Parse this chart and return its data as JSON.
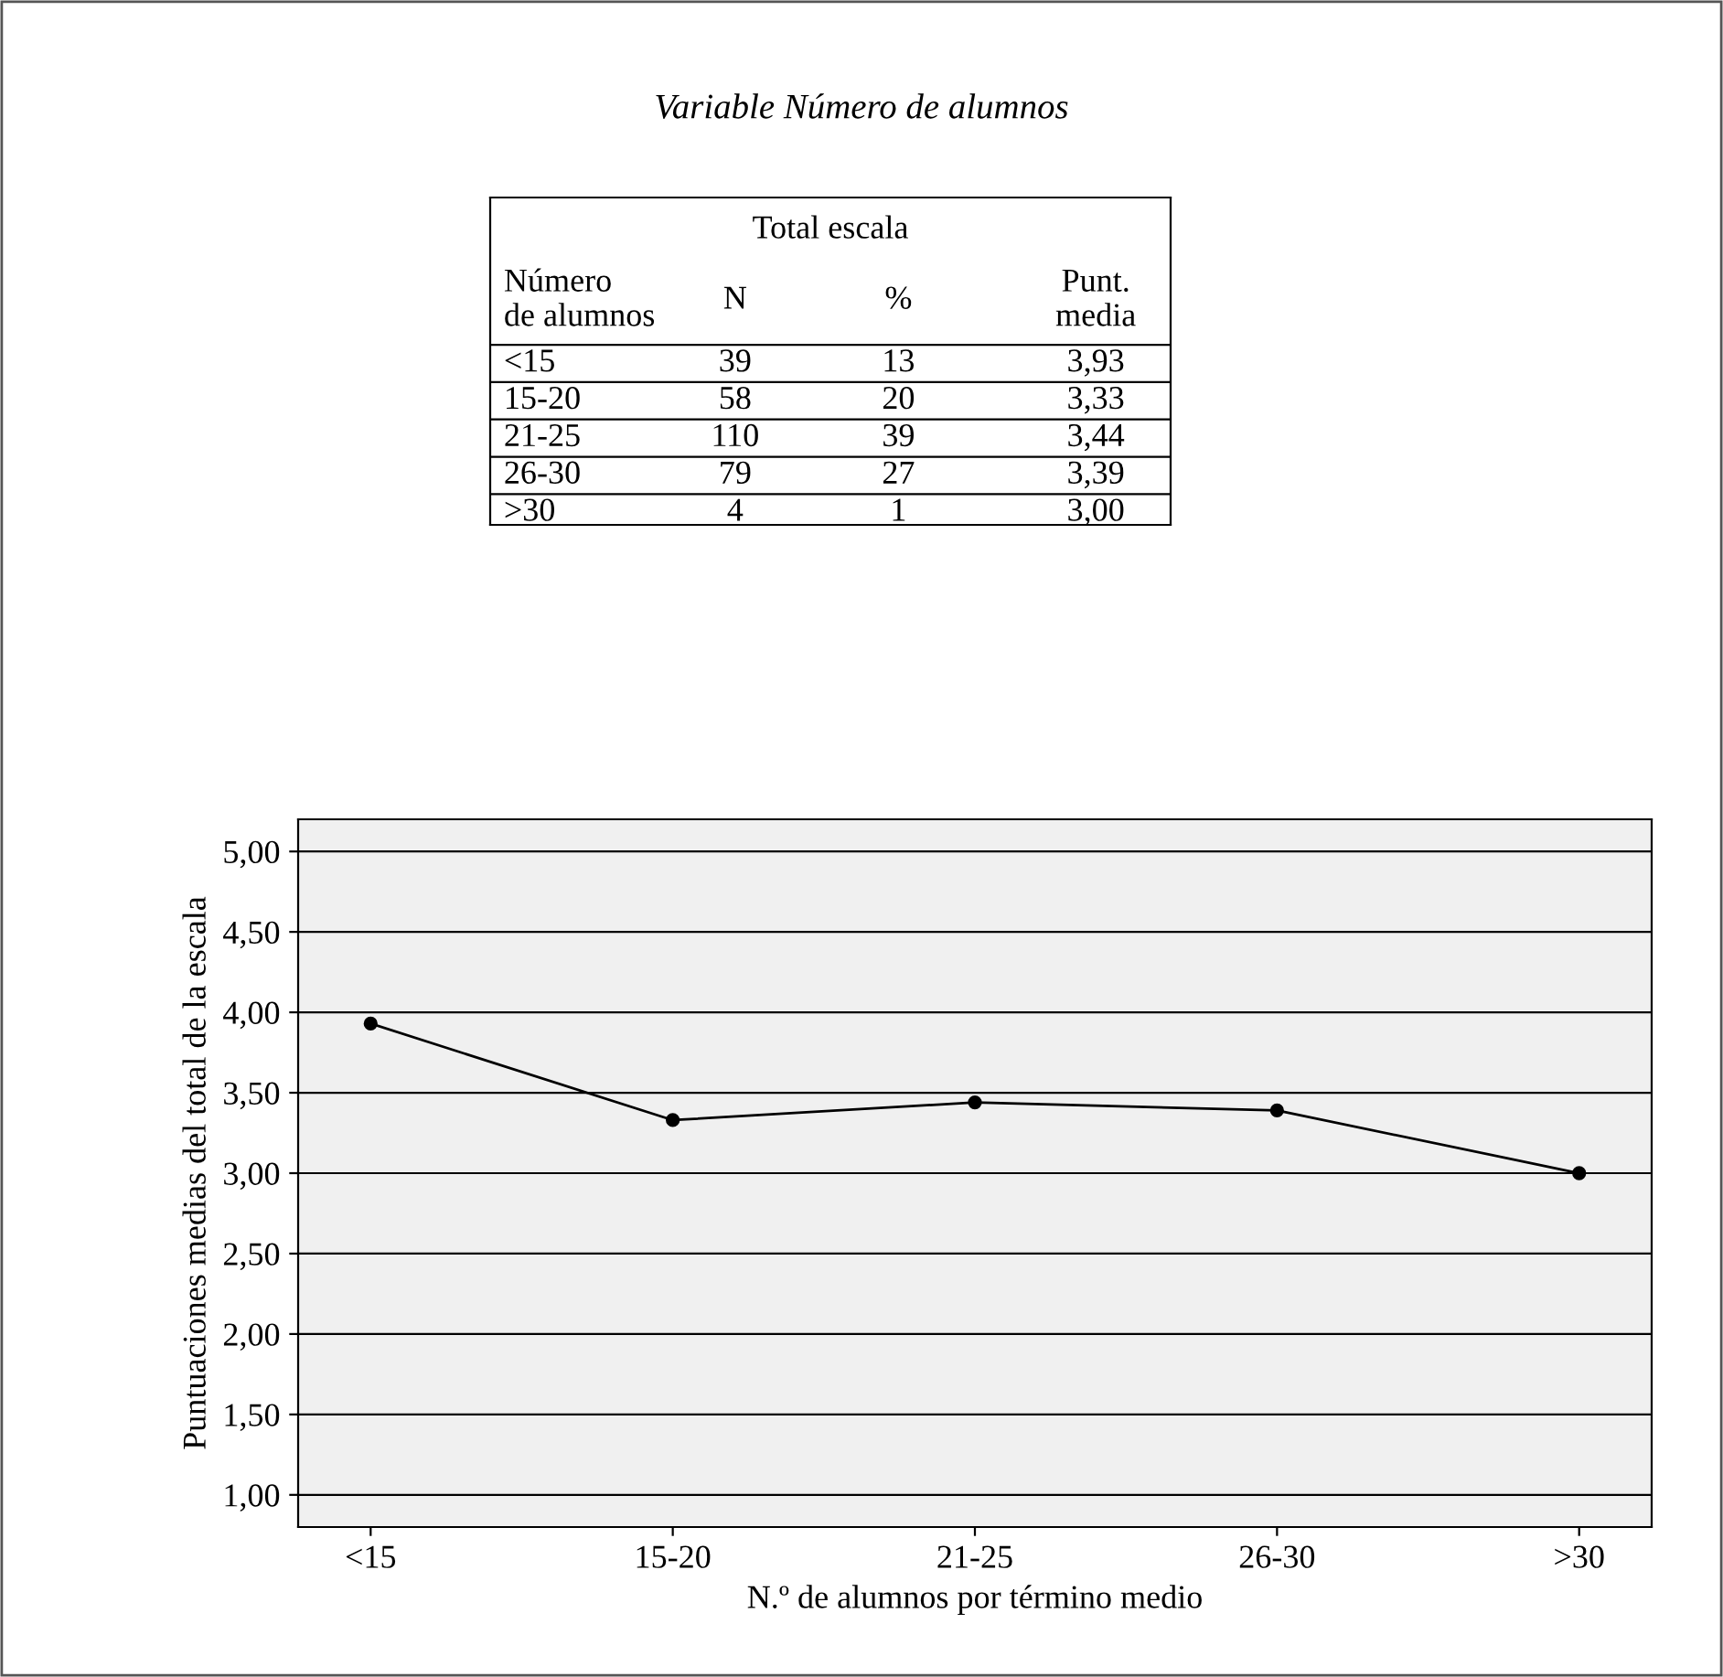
{
  "chart_data": [
    {
      "type": "other",
      "title": "Variable Número de alumnos",
      "subtitle": "Total escala",
      "annotations": [
        "Número\nde alumnos",
        "N",
        "%",
        "Punt.\nmedia",
        "<15",
        "39",
        "13",
        "3,93",
        "15-20",
        "58",
        "20",
        "3,33",
        "21-25",
        "110",
        "39",
        "3,44",
        "26-30",
        "79",
        "27",
        "3,39",
        ">30",
        "4",
        "1",
        "3,00"
      ]
    },
    {
      "type": "line",
      "xlabel": "N.º de alumnos por término medio",
      "ylabel": "Puntuaciones medias del total de la escala",
      "categories": [
        "<15",
        "15-20",
        "21-25",
        "26-30",
        ">30"
      ],
      "series": [
        {
          "color": "#000000",
          "values": [
            3.93,
            3.33,
            3.44,
            3.39,
            3.0
          ]
        }
      ],
      "ylim": [
        0.8,
        5.2
      ],
      "yticks": [
        {
          "value": 1,
          "label": "1,00"
        },
        {
          "value": 1.5,
          "label": "1,50"
        },
        {
          "value": 2,
          "label": "2,00"
        },
        {
          "value": 2.5,
          "label": "2,50"
        },
        {
          "value": 3,
          "label": "3,00"
        },
        {
          "value": 3.5,
          "label": "3,50"
        },
        {
          "value": 4,
          "label": "4,00"
        },
        {
          "value": 4.5,
          "label": "4,50"
        },
        {
          "value": 5,
          "label": "5,00"
        }
      ],
      "grid": "y",
      "marker": "circle",
      "line_style": "solid",
      "legend": false
    }
  ]
}
